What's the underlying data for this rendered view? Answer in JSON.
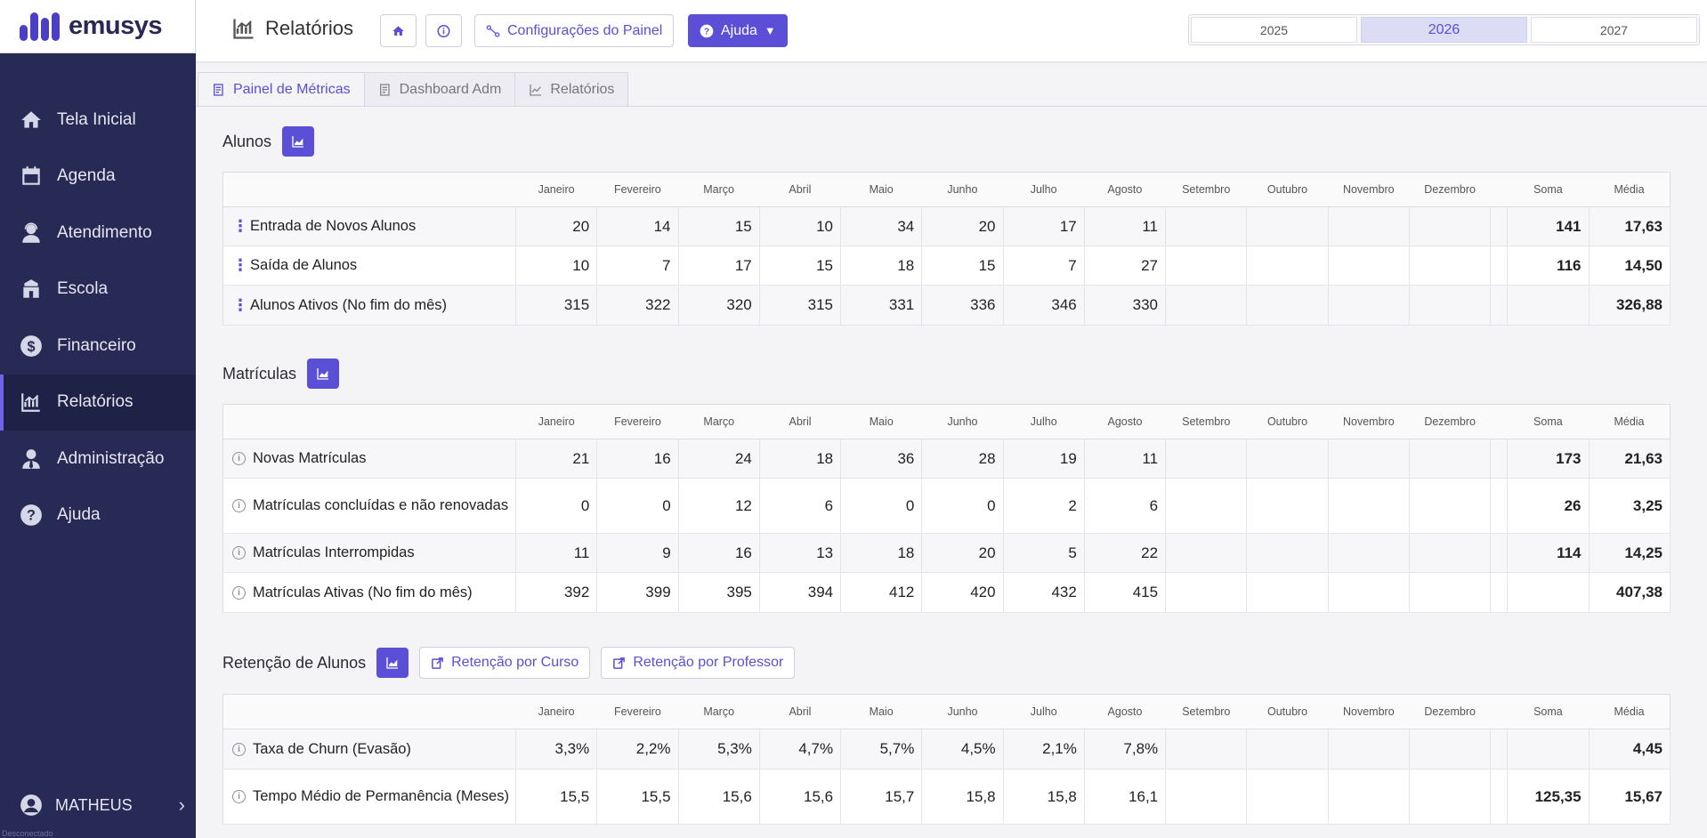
{
  "app": {
    "logo_text": "emusys",
    "brand_color": "#4b3fc7",
    "accent": "#5a4fd6",
    "sidebar_bg": "#262a55"
  },
  "sidebar": {
    "items": [
      {
        "label": "Tela Inicial",
        "icon": "home-icon"
      },
      {
        "label": "Agenda",
        "icon": "calendar-icon"
      },
      {
        "label": "Atendimento",
        "icon": "headset-user-icon"
      },
      {
        "label": "Escola",
        "icon": "school-icon"
      },
      {
        "label": "Financeiro",
        "icon": "dollar-circle-icon"
      },
      {
        "label": "Relatórios",
        "icon": "chart-icon",
        "active": true
      },
      {
        "label": "Administração",
        "icon": "user-tie-icon"
      },
      {
        "label": "Ajuda",
        "icon": "question-circle-icon"
      }
    ],
    "user": "MATHEUS",
    "status": "Desconectado"
  },
  "header": {
    "title": "Relatórios",
    "config_label": "Configurações do Painel",
    "help_label": "Ajuda",
    "years": [
      "2025",
      "2026",
      "2027"
    ],
    "active_year": "2026"
  },
  "tabs": [
    {
      "label": "Painel de Métricas",
      "active": true
    },
    {
      "label": "Dashboard Adm"
    },
    {
      "label": "Relatórios"
    }
  ],
  "columns": [
    "Janeiro",
    "Fevereiro",
    "Março",
    "Abril",
    "Maio",
    "Junho",
    "Julho",
    "Agosto",
    "Setembro",
    "Outubro",
    "Novembro",
    "Dezembro",
    "Soma",
    "Média"
  ],
  "sections": {
    "alunos": {
      "title": "Alunos",
      "rows": [
        {
          "label": "Entrada de Novos Alunos",
          "values": [
            "20",
            "14",
            "15",
            "10",
            "34",
            "20",
            "17",
            "11",
            "",
            "",
            "",
            ""
          ],
          "soma": "141",
          "media": "17,63"
        },
        {
          "label": "Saída de Alunos",
          "values": [
            "10",
            "7",
            "17",
            "15",
            "18",
            "15",
            "7",
            "27",
            "",
            "",
            "",
            ""
          ],
          "soma": "116",
          "media": "14,50"
        },
        {
          "label": "Alunos Ativos (No fim do mês)",
          "values": [
            "315",
            "322",
            "320",
            "315",
            "331",
            "336",
            "346",
            "330",
            "",
            "",
            "",
            ""
          ],
          "soma": "",
          "media": "326,88"
        }
      ]
    },
    "matriculas": {
      "title": "Matrículas",
      "rows": [
        {
          "label": "Novas Matrículas",
          "values": [
            "21",
            "16",
            "24",
            "18",
            "36",
            "28",
            "19",
            "11",
            "",
            "",
            "",
            ""
          ],
          "soma": "173",
          "media": "21,63"
        },
        {
          "label": "Matrículas concluídas e não renovadas",
          "values": [
            "0",
            "0",
            "12",
            "6",
            "0",
            "0",
            "2",
            "6",
            "",
            "",
            "",
            ""
          ],
          "soma": "26",
          "media": "3,25"
        },
        {
          "label": "Matrículas Interrompidas",
          "values": [
            "11",
            "9",
            "16",
            "13",
            "18",
            "20",
            "5",
            "22",
            "",
            "",
            "",
            ""
          ],
          "soma": "114",
          "media": "14,25"
        },
        {
          "label": "Matrículas Ativas (No fim do mês)",
          "values": [
            "392",
            "399",
            "395",
            "394",
            "412",
            "420",
            "432",
            "415",
            "",
            "",
            "",
            ""
          ],
          "soma": "",
          "media": "407,38"
        }
      ]
    },
    "retencao": {
      "title": "Retenção de Alunos",
      "btn_curso": "Retenção por Curso",
      "btn_professor": "Retenção por Professor",
      "rows": [
        {
          "label": "Taxa de Churn (Evasão)",
          "values": [
            "3,3%",
            "2,2%",
            "5,3%",
            "4,7%",
            "5,7%",
            "4,5%",
            "2,1%",
            "7,8%",
            "",
            "",
            "",
            ""
          ],
          "soma": "",
          "media": "4,45"
        },
        {
          "label": "Tempo Médio de Permanência (Meses)",
          "values": [
            "15,5",
            "15,5",
            "15,6",
            "15,6",
            "15,7",
            "15,8",
            "15,8",
            "16,1",
            "",
            "",
            "",
            ""
          ],
          "soma": "125,35",
          "media": "15,67"
        }
      ]
    }
  }
}
